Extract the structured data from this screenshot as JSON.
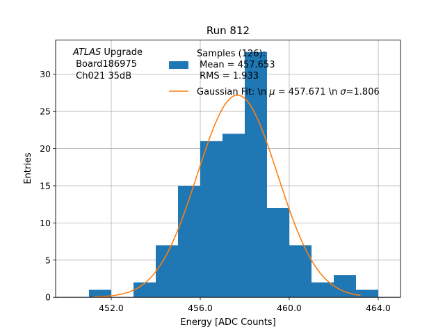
{
  "chart_data": {
    "type": "histogram",
    "title": "Run 812",
    "xlabel": "Energy [ADC Counts]",
    "ylabel": "Entries",
    "xlim": [
      449.5,
      465.0
    ],
    "ylim": [
      0,
      34.6
    ],
    "xticks": [
      452.0,
      456.0,
      460.0,
      464.0
    ],
    "xtick_labels": [
      "452.0",
      "456.0",
      "460.0",
      "464.0"
    ],
    "yticks": [
      0,
      5,
      10,
      15,
      20,
      25,
      30
    ],
    "ytick_labels": [
      "0",
      "5",
      "10",
      "15",
      "20",
      "25",
      "30"
    ],
    "grid": true,
    "bar_color": "#1f77b4",
    "fit_color": "#ff7f0e",
    "bins": [
      {
        "x0": 451,
        "x1": 452,
        "count": 1
      },
      {
        "x0": 452,
        "x1": 453,
        "count": 0
      },
      {
        "x0": 453,
        "x1": 454,
        "count": 2
      },
      {
        "x0": 454,
        "x1": 455,
        "count": 7
      },
      {
        "x0": 455,
        "x1": 456,
        "count": 15
      },
      {
        "x0": 456,
        "x1": 457,
        "count": 21
      },
      {
        "x0": 457,
        "x1": 458,
        "count": 22
      },
      {
        "x0": 458,
        "x1": 459,
        "count": 33
      },
      {
        "x0": 459,
        "x1": 460,
        "count": 12
      },
      {
        "x0": 460,
        "x1": 461,
        "count": 7
      },
      {
        "x0": 461,
        "x1": 462,
        "count": 2
      },
      {
        "x0": 462,
        "x1": 463,
        "count": 3
      },
      {
        "x0": 463,
        "x1": 464,
        "count": 1
      }
    ],
    "fit": {
      "mu": 457.671,
      "sigma": 1.806,
      "amplitude": 27.2,
      "x_range": [
        451.2,
        463.2
      ]
    },
    "annotation": {
      "lines": [
        {
          "italic": "ATLAS",
          "text": " Upgrade"
        },
        {
          "italic": "",
          "text": " Board186975"
        },
        {
          "italic": "",
          "text": " Ch021 35dB"
        }
      ]
    },
    "legend": {
      "placement": "top-right",
      "hist_lines": [
        "Samples (126):",
        " Mean = 457.653",
        " RMS = 1.933"
      ],
      "fit_label_before": "Gaussian Fit: \\n ",
      "fit_mu_symbol": "μ",
      "fit_label_mid": " = 457.671 \\n ",
      "fit_sigma_symbol": "σ",
      "fit_label_end": "=1.806"
    }
  }
}
